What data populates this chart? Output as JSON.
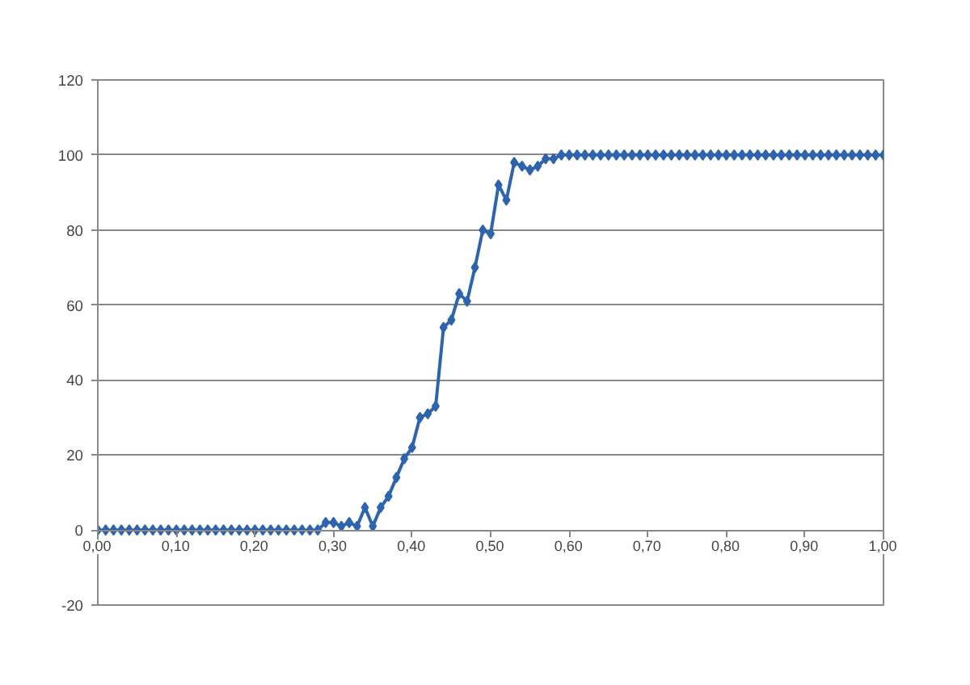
{
  "chart_data": {
    "type": "line",
    "x": [
      0,
      0.01,
      0.02,
      0.03,
      0.04,
      0.05,
      0.06,
      0.07,
      0.08,
      0.09,
      0.1,
      0.11,
      0.12,
      0.13,
      0.14,
      0.15,
      0.16,
      0.17,
      0.18,
      0.19,
      0.2,
      0.21,
      0.22,
      0.23,
      0.24,
      0.25,
      0.26,
      0.27,
      0.28,
      0.29,
      0.3,
      0.31,
      0.32,
      0.33,
      0.34,
      0.35,
      0.36,
      0.37,
      0.38,
      0.39,
      0.4,
      0.41,
      0.42,
      0.43,
      0.44,
      0.45,
      0.46,
      0.47,
      0.48,
      0.49,
      0.5,
      0.51,
      0.52,
      0.53,
      0.54,
      0.55,
      0.56,
      0.57,
      0.58,
      0.59,
      0.6,
      0.61,
      0.62,
      0.63,
      0.64,
      0.65,
      0.66,
      0.67,
      0.68,
      0.69,
      0.7,
      0.71,
      0.72,
      0.73,
      0.74,
      0.75,
      0.76,
      0.77,
      0.78,
      0.79,
      0.8,
      0.81,
      0.82,
      0.83,
      0.84,
      0.85,
      0.86,
      0.87,
      0.88,
      0.89,
      0.9,
      0.91,
      0.92,
      0.93,
      0.94,
      0.95,
      0.96,
      0.97,
      0.98,
      0.99,
      1.0
    ],
    "series": [
      {
        "color": "#2e64ae",
        "values": [
          0,
          0,
          0,
          0,
          0,
          0,
          0,
          0,
          0,
          0,
          0,
          0,
          0,
          0,
          0,
          0,
          0,
          0,
          0,
          0,
          0,
          0,
          0,
          0,
          0,
          0,
          0,
          0,
          0,
          2,
          2,
          1,
          2,
          1,
          6,
          1,
          6,
          9,
          14,
          19,
          22,
          30,
          31,
          33,
          54,
          56,
          63,
          61,
          70,
          80,
          79,
          92,
          88,
          98,
          97,
          96,
          97,
          99,
          99,
          100,
          100,
          100,
          100,
          100,
          100,
          100,
          100,
          100,
          100,
          100,
          100,
          100,
          100,
          100,
          100,
          100,
          100,
          100,
          100,
          100,
          100,
          100,
          100,
          100,
          100,
          100,
          100,
          100,
          100,
          100,
          100,
          100,
          100,
          100,
          100,
          100,
          100,
          100,
          100,
          100,
          100
        ]
      }
    ],
    "xlim": [
      0,
      1
    ],
    "ylim": [
      -20,
      120
    ],
    "xticks": [
      {
        "value": 0,
        "label": "0,00"
      },
      {
        "value": 0.1,
        "label": "0,10"
      },
      {
        "value": 0.2,
        "label": "0,20"
      },
      {
        "value": 0.3,
        "label": "0,30"
      },
      {
        "value": 0.4,
        "label": "0,40"
      },
      {
        "value": 0.5,
        "label": "0,50"
      },
      {
        "value": 0.6,
        "label": "0,60"
      },
      {
        "value": 0.7,
        "label": "0,70"
      },
      {
        "value": 0.8,
        "label": "0,80"
      },
      {
        "value": 0.9,
        "label": "0,90"
      },
      {
        "value": 1,
        "label": "1,00"
      }
    ],
    "yticks": [
      -20,
      0,
      20,
      40,
      60,
      80,
      100,
      120
    ],
    "grid": "y",
    "marker": "diamond",
    "line_style": "solid"
  }
}
